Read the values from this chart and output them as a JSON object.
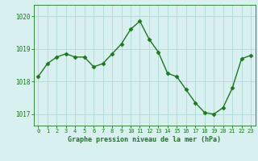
{
  "x": [
    0,
    1,
    2,
    3,
    4,
    5,
    6,
    7,
    8,
    9,
    10,
    11,
    12,
    13,
    14,
    15,
    16,
    17,
    18,
    19,
    20,
    21,
    22,
    23
  ],
  "y": [
    1018.15,
    1018.55,
    1018.75,
    1018.85,
    1018.75,
    1018.75,
    1018.45,
    1018.55,
    1018.85,
    1019.15,
    1019.6,
    1019.85,
    1019.3,
    1018.9,
    1018.25,
    1018.15,
    1017.75,
    1017.35,
    1017.05,
    1017.0,
    1017.2,
    1017.8,
    1018.7,
    1018.8
  ],
  "line_color": "#1a7a1a",
  "marker": "D",
  "marker_size": 2.5,
  "bg_color": "#d8f0f0",
  "grid_color": "#b0d8d8",
  "axis_color": "#1a7a1a",
  "title": "Graphe pression niveau de la mer (hPa)",
  "title_color": "#1a7a1a",
  "xlabel_ticks": [
    "0",
    "1",
    "2",
    "3",
    "4",
    "5",
    "6",
    "7",
    "8",
    "9",
    "10",
    "11",
    "12",
    "13",
    "14",
    "15",
    "16",
    "17",
    "18",
    "19",
    "20",
    "21",
    "22",
    "23"
  ],
  "yticks": [
    1017,
    1018,
    1019,
    1020
  ],
  "ylim": [
    1016.65,
    1020.35
  ],
  "xlim": [
    -0.5,
    23.5
  ]
}
